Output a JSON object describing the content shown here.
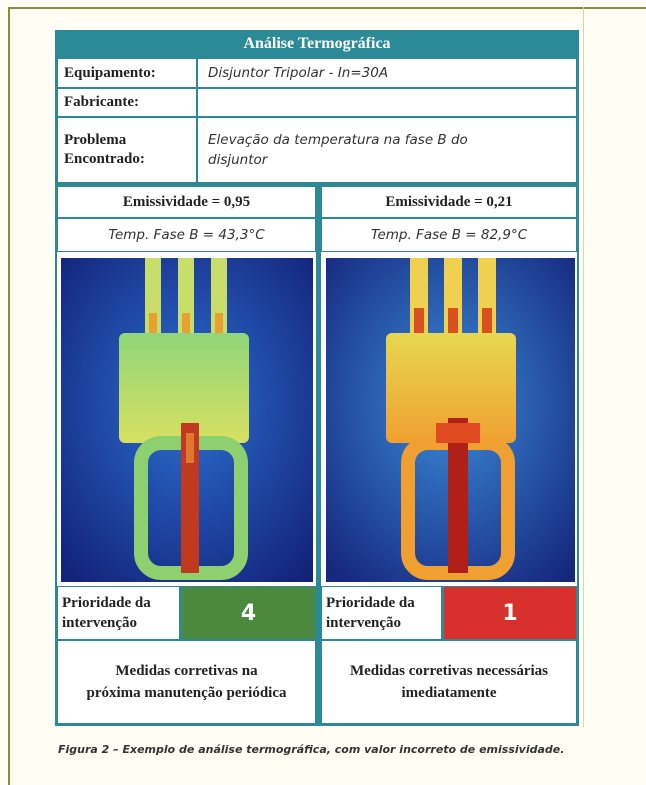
{
  "header": {
    "title": "Análise Termográfica"
  },
  "info": [
    {
      "label": "Equipamento:",
      "value": "Disjuntor Tripolar - In=30A"
    },
    {
      "label": "Fabricante:"
    },
    {
      "label": "Problema Encontrado:",
      "value": "Elevação da temperatura na fase B do disjuntor"
    }
  ],
  "columns": [
    {
      "emissivity": "Emissividade = 0,95",
      "temperature": "Temp. Fase B = 43,3°C",
      "priority_label": "Prioridade da intervenção",
      "priority": 4,
      "measures": "Medidas corretivas na próxima manutenção periódica"
    },
    {
      "emissivity": "Emissividade = 0,21",
      "temperature": "Temp. Fase B = 82,9°C",
      "priority_label": "Prioridade da intervenção",
      "priority": 1,
      "measures": "Medidas corretivas necessárias imediatamente"
    }
  ],
  "caption": "Figura 2 – Exemplo de análise termográfica, com valor incorreto de emissividade."
}
